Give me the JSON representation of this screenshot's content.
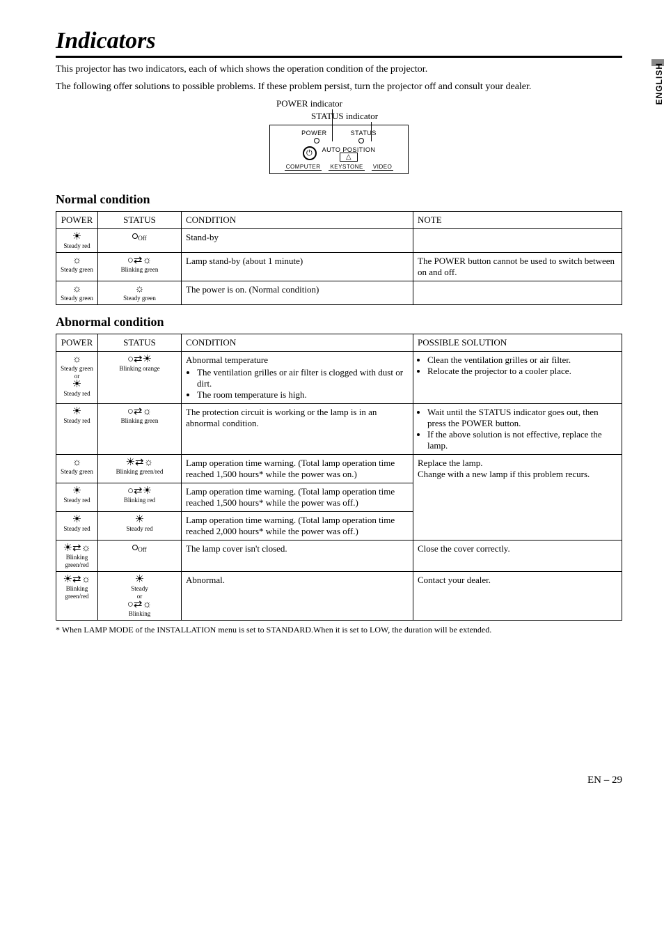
{
  "sideTab": "ENGLISH",
  "title": "Indicators",
  "intro1": "This projector has two indicators, each of which shows the operation condition of the projector.",
  "intro2": "The following offer solutions to possible problems. If these problem persist, turn the projector off and consult your dealer.",
  "diagram": {
    "powerLabel": "POWER indicator",
    "statusLabel": "STATUS indicator",
    "panel": {
      "power": "POWER",
      "status": "STATUS",
      "autoPos": "AUTO POSITION",
      "tri": "△",
      "computer": "COMPUTER",
      "keystone": "KEYSTONE",
      "video": "VIDEO"
    }
  },
  "normal": {
    "heading": "Normal condition",
    "headers": {
      "power": "POWER",
      "status": "STATUS",
      "condition": "CONDITION",
      "note": "NOTE"
    },
    "rows": [
      {
        "power": {
          "icon": "sun-filled",
          "label": "Steady red"
        },
        "status": {
          "icon": "circle",
          "label": "Off"
        },
        "condition": "Stand-by",
        "note": ""
      },
      {
        "power": {
          "icon": "sun",
          "label": "Steady green"
        },
        "status": {
          "icon": "blink",
          "label": "Blinking green"
        },
        "condition": "Lamp stand-by (about 1 minute)",
        "note": "The POWER button cannot be used to switch between on and off."
      },
      {
        "power": {
          "icon": "sun",
          "label": "Steady green"
        },
        "status": {
          "icon": "sun",
          "label": "Steady green"
        },
        "condition": "The power is on. (Normal condition)",
        "note": ""
      }
    ]
  },
  "abnormal": {
    "heading": "Abnormal condition",
    "headers": {
      "power": "POWER",
      "status": "STATUS",
      "condition": "CONDITION",
      "solution": "POSSIBLE SOLUTION"
    },
    "rows": [
      {
        "power": {
          "iconA": "sun",
          "labelA": "Steady green",
          "or": "or",
          "iconB": "sun-filled",
          "labelB": "Steady red"
        },
        "status": {
          "icon": "blink-filled",
          "label": "Blinking orange"
        },
        "conditionHead": "Abnormal temperature",
        "conditionItems": [
          "The ventilation grilles or air filter is clogged with dust or dirt.",
          "The room temperature is high."
        ],
        "solutionItems": [
          "Clean the ventilation grilles or air filter.",
          "Relocate the projector to a cooler place."
        ]
      },
      {
        "power": {
          "icon": "sun-filled",
          "label": "Steady red"
        },
        "status": {
          "icon": "blink",
          "label": "Blinking green"
        },
        "conditionText": "The protection circuit is working or the lamp is in an abnormal condition.",
        "solutionItems": [
          "Wait until the STATUS indicator goes out, then press the POWER button.",
          "If the above solution is not effective, replace the lamp."
        ]
      },
      {
        "power": {
          "icon": "sun",
          "label": "Steady green"
        },
        "status": {
          "icon": "blink-mix",
          "label": "Blinking green/red"
        },
        "conditionText": "Lamp operation time warning. (Total lamp operation time reached 1,500 hours* while the power was on.)",
        "solutionText": "Replace the lamp.\nChange with a new lamp if this problem recurs.",
        "solutionRowspan": 3
      },
      {
        "power": {
          "icon": "sun-filled",
          "label": "Steady red"
        },
        "status": {
          "icon": "blink-filled",
          "label": "Blinking red"
        },
        "conditionText": "Lamp operation time warning. (Total lamp operation time reached 1,500 hours* while the power was off.)"
      },
      {
        "power": {
          "icon": "sun-filled",
          "label": "Steady red"
        },
        "status": {
          "icon": "sun-filled",
          "label": "Steady red"
        },
        "conditionText": "Lamp operation time warning. (Total lamp operation time reached 2,000 hours* while the power was off.)"
      },
      {
        "power": {
          "icon": "blink-mix",
          "label": "Blinking green/red"
        },
        "status": {
          "icon": "circle",
          "label": "Off"
        },
        "conditionText": "The lamp cover isn't closed.",
        "solutionText": "Close the cover correctly."
      },
      {
        "power": {
          "icon": "blink-mix",
          "label": "Blinking green/red"
        },
        "status": {
          "iconA": "sun-filled",
          "labelA": "Steady",
          "or": "or",
          "iconB": "blink",
          "labelB": "Blinking"
        },
        "conditionText": "Abnormal.",
        "solutionText": "Contact your dealer."
      }
    ]
  },
  "footnote": "* When LAMP MODE of the INSTALLATION menu is set to STANDARD.When it is set to LOW, the duration will be extended.",
  "pageNum": "EN – 29"
}
